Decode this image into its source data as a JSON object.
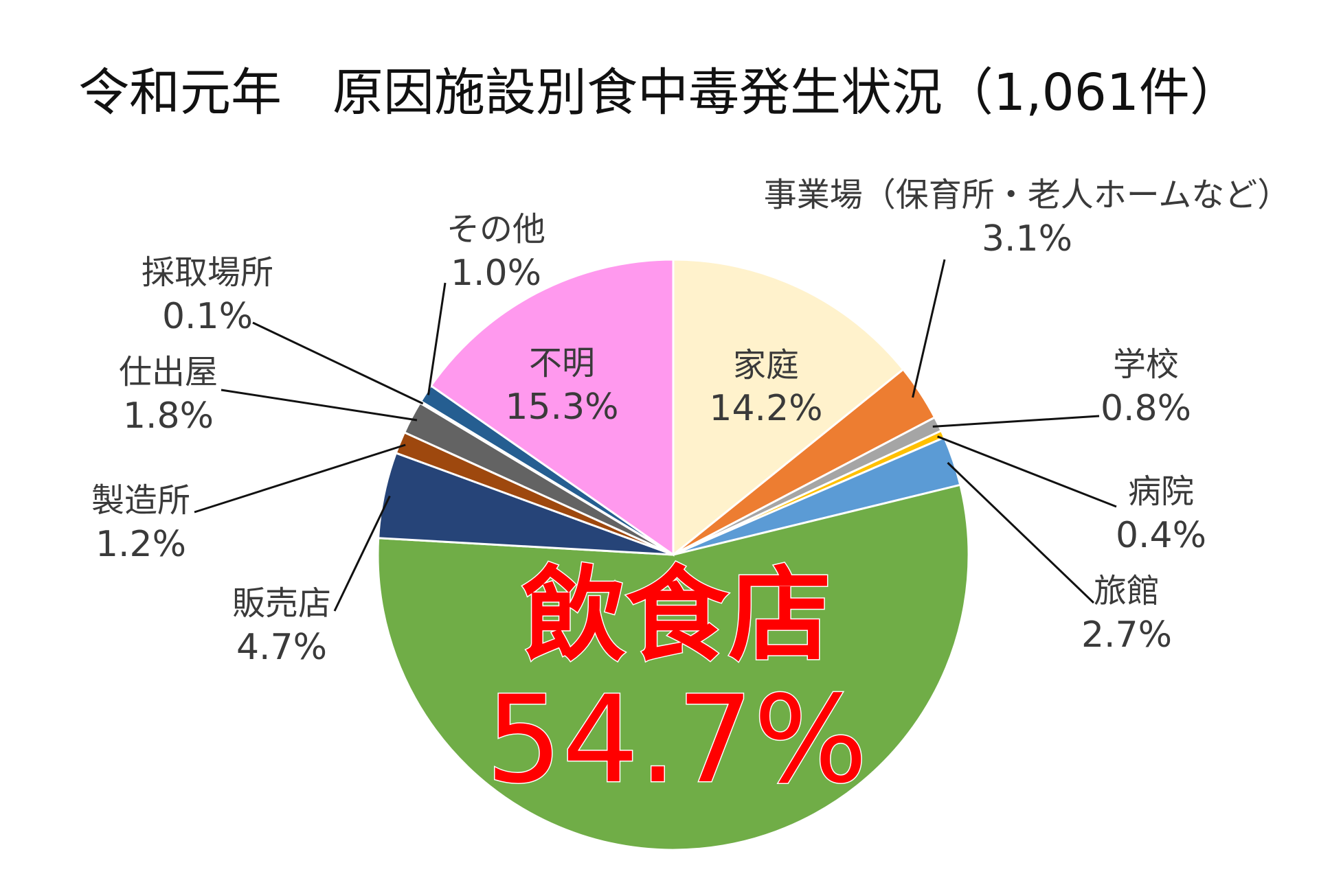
{
  "chart_data": {
    "type": "pie",
    "title": "令和元年　原因施設別食中毒発生状況（1,061件）",
    "start_angle_deg": 0,
    "direction": "clockwise",
    "legend": "none",
    "slices": [
      {
        "name": "家庭",
        "value": 14.2,
        "label": "14.2%",
        "color": "#FFF2CC"
      },
      {
        "name": "事業場（保育所・老人ホームなど）",
        "value": 3.1,
        "label": "3.1%",
        "color": "#ED7D31"
      },
      {
        "name": "学校",
        "value": 0.8,
        "label": "0.8%",
        "color": "#A5A5A5"
      },
      {
        "name": "病院",
        "value": 0.4,
        "label": "0.4%",
        "color": "#FFC000"
      },
      {
        "name": "旅館",
        "value": 2.7,
        "label": "2.7%",
        "color": "#5B9BD5"
      },
      {
        "name": "飲食店",
        "value": 54.7,
        "label": "54.7%",
        "color": "#70AD47"
      },
      {
        "name": "販売店",
        "value": 4.7,
        "label": "4.7%",
        "color": "#264478"
      },
      {
        "name": "製造所",
        "value": 1.2,
        "label": "1.2%",
        "color": "#9E480E"
      },
      {
        "name": "仕出屋",
        "value": 1.8,
        "label": "1.8%",
        "color": "#636363"
      },
      {
        "name": "採取場所",
        "value": 0.1,
        "label": "0.1%",
        "color": "#997300"
      },
      {
        "name": "その他",
        "value": 1.0,
        "label": "1.0%",
        "color": "#255E91"
      },
      {
        "name": "不明",
        "value": 15.3,
        "label": "15.3%",
        "color": "#FF99EE"
      }
    ]
  }
}
